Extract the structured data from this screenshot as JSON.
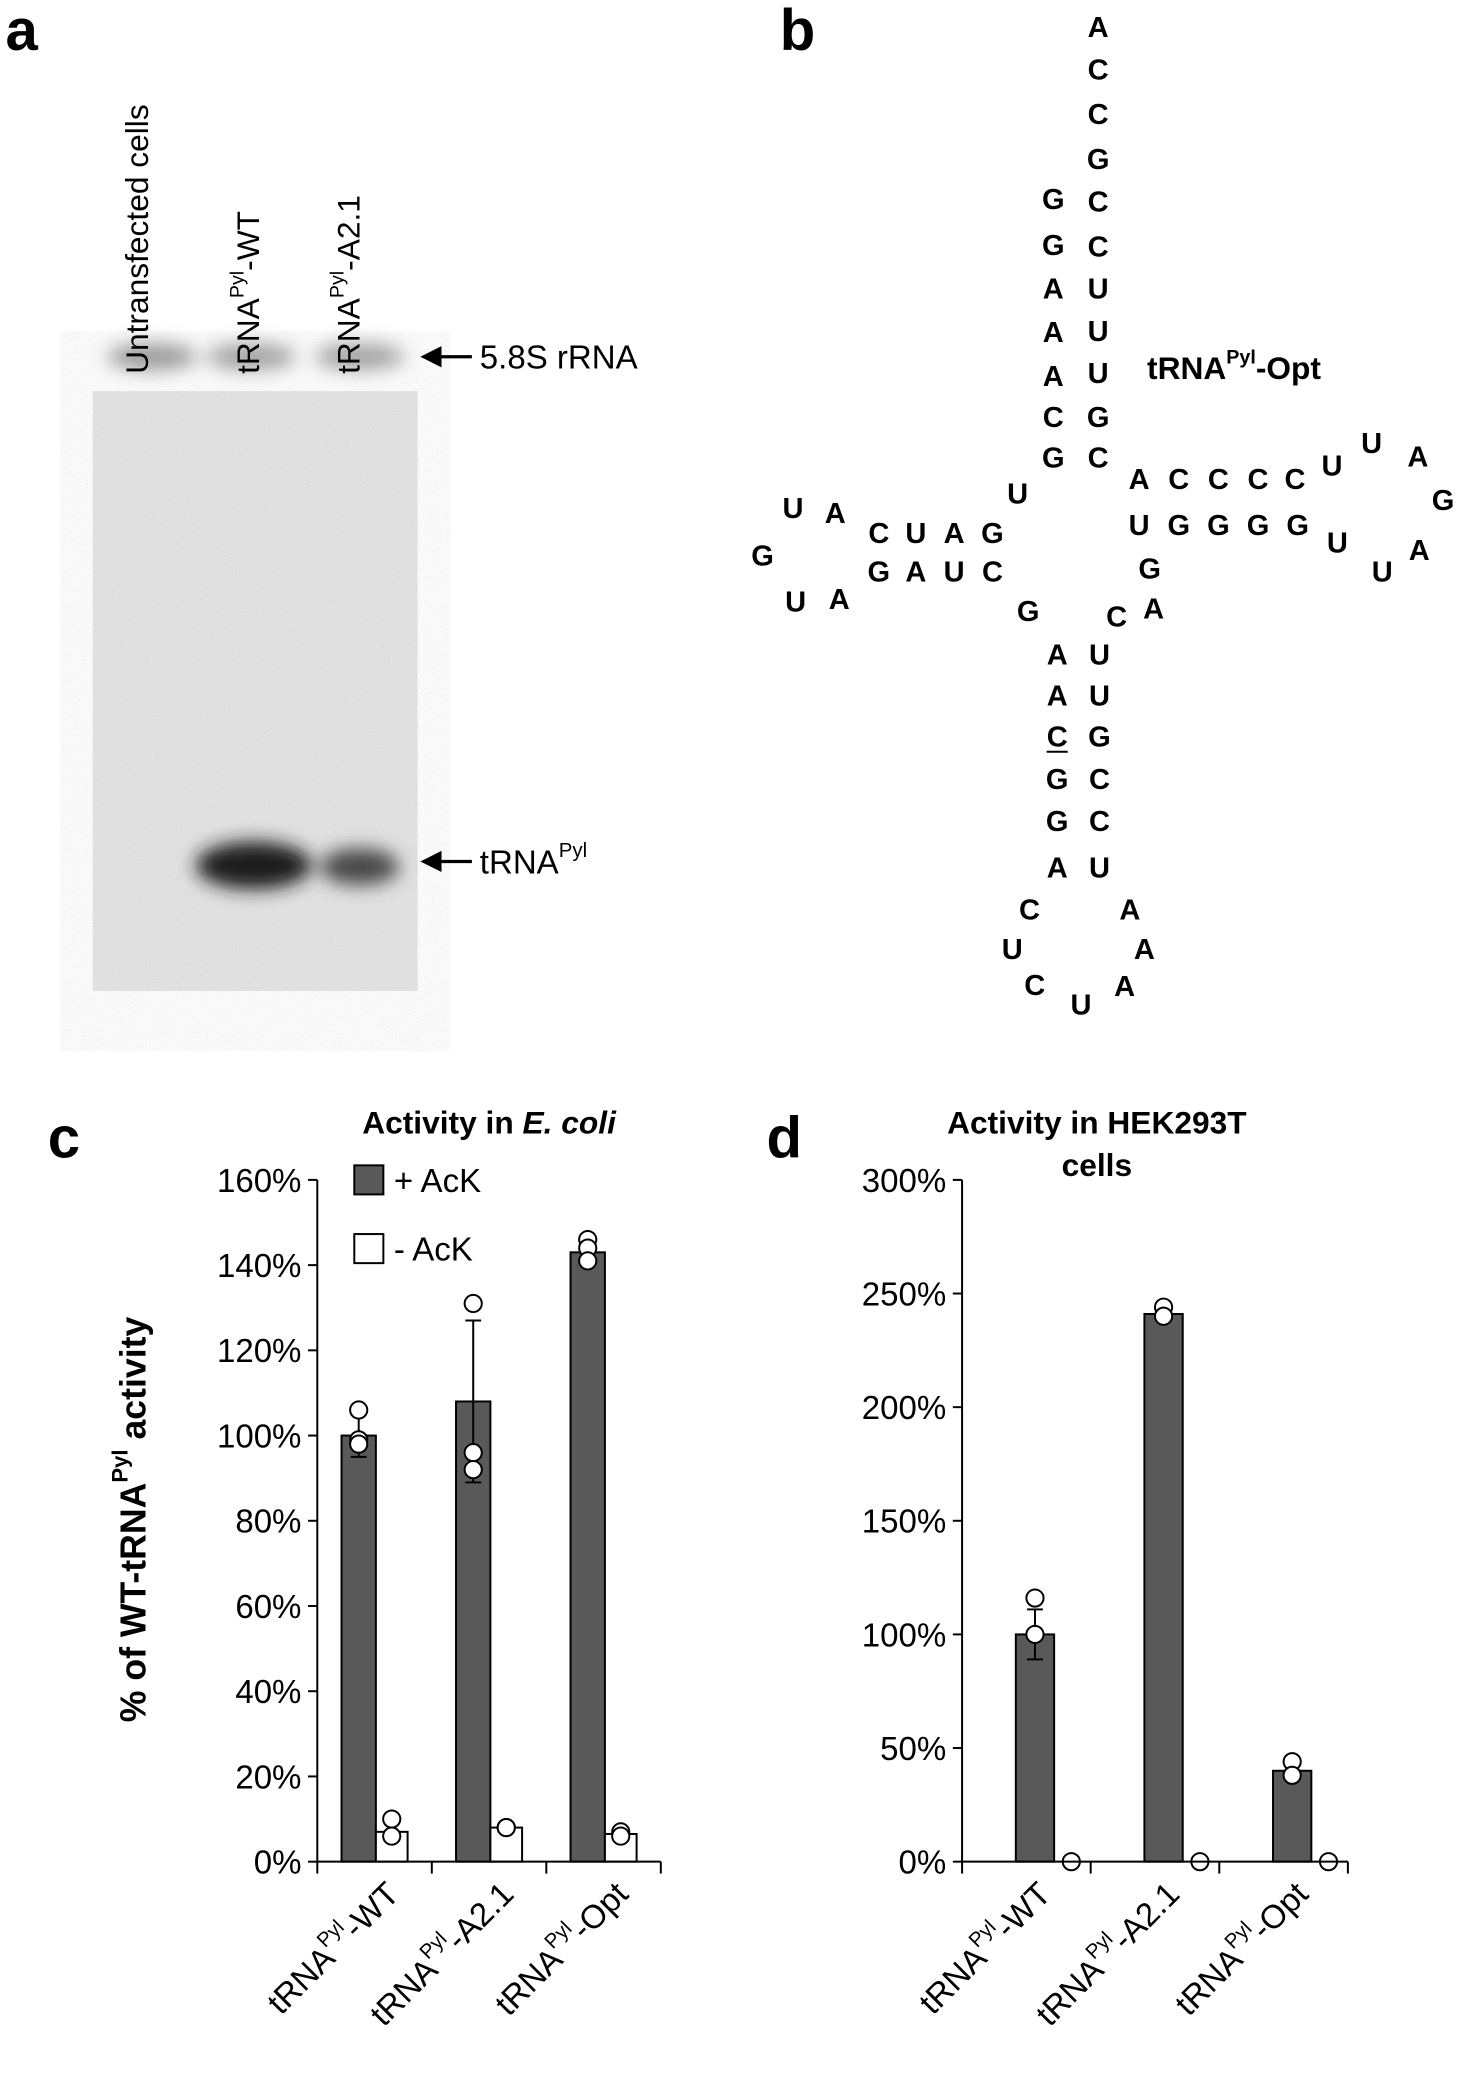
{
  "panel_labels": [
    "a",
    "b",
    "c",
    "d"
  ],
  "gel": {
    "lanes": [
      "Untransfected cells",
      [
        "tRNA",
        "Pyl",
        "-WT"
      ],
      [
        "tRNA",
        "Pyl",
        "-A2.1"
      ]
    ],
    "bands": [
      "5.8S rRNA",
      [
        "tRNA",
        "Pyl"
      ]
    ]
  },
  "structure": {
    "title": [
      "tRNA",
      "Pyl",
      "-Opt"
    ],
    "bases": [
      "G",
      "G",
      "A",
      "A",
      "A",
      "C",
      "G",
      "A",
      "C",
      "C",
      "G",
      "C",
      "C",
      "U",
      "U",
      "U",
      "G",
      "C",
      "A",
      "C",
      "C",
      "C",
      "C",
      "U",
      "U",
      "A",
      "G",
      "U",
      "G",
      "G",
      "G",
      "G",
      "U",
      "U",
      "A",
      "U",
      "C",
      "U",
      "A",
      "G",
      "G",
      "A",
      "U",
      "C",
      "U",
      "A",
      "G",
      "U",
      "A",
      "G",
      "G",
      "C",
      "A",
      "A",
      "A",
      "C",
      "G",
      "G",
      "A",
      "U",
      "U",
      "G",
      "C",
      "C",
      "U",
      "C",
      "U",
      "C",
      "U",
      "A",
      "A",
      "A"
    ],
    "highlight_color": "#e8141b"
  },
  "chart_data": [
    {
      "type": "bar",
      "title": [
        "Activity in ",
        "E. coli"
      ],
      "ylabel": [
        "% of WT-tRNA",
        "Pyl",
        " activity"
      ],
      "categories": [
        [
          "tRNA",
          "Pyl",
          "-WT"
        ],
        [
          "tRNA",
          "Pyl",
          "-A2.1"
        ],
        [
          "tRNA",
          "Pyl",
          "-Opt"
        ]
      ],
      "series": [
        {
          "name": "+ AcK",
          "color": "#595959",
          "values": [
            100,
            108,
            143
          ],
          "errors": [
            5,
            19,
            3
          ],
          "points": [
            [
              106,
              99,
              98
            ],
            [
              131,
              96,
              92
            ],
            [
              146,
              144,
              141
            ]
          ]
        },
        {
          "name": "- AcK",
          "color": "#ffffff",
          "values": [
            7,
            8,
            6.5
          ],
          "errors": [
            2,
            1,
            1
          ],
          "points": [
            [
              10,
              6
            ],
            [
              8,
              8
            ],
            [
              7,
              6
            ]
          ]
        }
      ],
      "ylim": [
        0,
        160
      ],
      "yticks": [
        {
          "value": 0,
          "label": "0%"
        },
        {
          "value": 20,
          "label": "20%"
        },
        {
          "value": 40,
          "label": "40%"
        },
        {
          "value": 60,
          "label": "60%"
        },
        {
          "value": 80,
          "label": "80%"
        },
        {
          "value": 100,
          "label": "100%"
        },
        {
          "value": 120,
          "label": "120%"
        },
        {
          "value": 140,
          "label": "140%"
        },
        {
          "value": 160,
          "label": "160%"
        }
      ],
      "legend": "upper-left"
    },
    {
      "type": "bar",
      "title": [
        "Activity in HEK293T",
        "cells"
      ],
      "categories": [
        [
          "tRNA",
          "Pyl",
          "-WT"
        ],
        [
          "tRNA",
          "Pyl",
          "-A2.1"
        ],
        [
          "tRNA",
          "Pyl",
          "-Opt"
        ]
      ],
      "series": [
        {
          "color": "#595959",
          "values": [
            100,
            241,
            40
          ],
          "errors": [
            11,
            2,
            3
          ],
          "points": [
            [
              116,
              100
            ],
            [
              244,
              240
            ],
            [
              44,
              38
            ]
          ]
        },
        {
          "color": "#ffffff",
          "values": [
            0,
            0,
            0
          ],
          "points": [
            [
              0
            ],
            [
              0
            ],
            [
              0
            ]
          ]
        }
      ],
      "ylim": [
        0,
        300
      ],
      "yticks": [
        {
          "value": 0,
          "label": "0%"
        },
        {
          "value": 50,
          "label": "50%"
        },
        {
          "value": 100,
          "label": "100%"
        },
        {
          "value": 150,
          "label": "150%"
        },
        {
          "value": 200,
          "label": "200%"
        },
        {
          "value": 250,
          "label": "250%"
        },
        {
          "value": 300,
          "label": "300%"
        }
      ]
    }
  ]
}
